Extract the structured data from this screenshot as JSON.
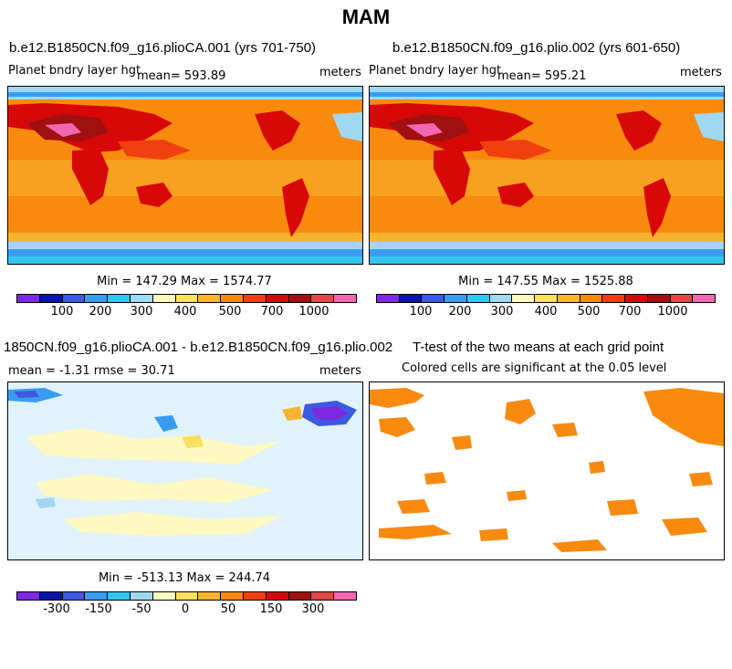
{
  "title": "MAM",
  "panels": [
    {
      "title": "b.e12.B1850CN.f09_g16.plioCA.001 (yrs 701-750)",
      "variable": "Planet bndry layer hgt",
      "mean_label": "mean= 593.89",
      "units": "meters",
      "minmax": "Min = 147.29 Max = 1574.77"
    },
    {
      "title": "b.e12.B1850CN.f09_g16.plio.002 (yrs 601-650)",
      "variable": "Planet bndry layer hgt",
      "mean_label": "mean= 595.21",
      "units": "meters",
      "minmax": "Min = 147.55 Max = 1525.88"
    },
    {
      "title": "1850CN.f09_g16.plioCA.001 - b.e12.B1850CN.f09_g16.plio.002",
      "stats": "mean =   -1.31     rmse =   30.71",
      "units": "meters",
      "minmax": "Min = -513.13 Max = 244.74"
    },
    {
      "title": "T-test of the two means at each grid point",
      "note": "Colored cells are significant at the 0.05 level"
    }
  ],
  "colorbar_colors": [
    "#7b2ae0",
    "#0a14a8",
    "#3c5ae0",
    "#3a9cf0",
    "#34c4f0",
    "#a0d8f4",
    "#fff8c0",
    "#f8e060",
    "#f8b430",
    "#f88a10",
    "#f04010",
    "#d80808",
    "#a01010",
    "#e04848",
    "#f068b0"
  ],
  "chart_data": [
    {
      "type": "heatmap",
      "title": "b.e12.B1850CN.f09_g16.plioCA.001 (yrs 701-750)",
      "variable": "Planet bndry layer hgt",
      "units": "meters",
      "mean": 593.89,
      "min": 147.29,
      "max": 1574.77,
      "colorbar_ticks": [
        "100",
        "200",
        "300",
        "400",
        "500",
        "700",
        "1000"
      ]
    },
    {
      "type": "heatmap",
      "title": "b.e12.B1850CN.f09_g16.plio.002 (yrs 601-650)",
      "variable": "Planet bndry layer hgt",
      "units": "meters",
      "mean": 595.21,
      "min": 147.55,
      "max": 1525.88,
      "colorbar_ticks": [
        "100",
        "200",
        "300",
        "400",
        "500",
        "700",
        "1000"
      ]
    },
    {
      "type": "heatmap",
      "title": "1850CN.f09_g16.plioCA.001 - b.e12.B1850CN.f09_g16.plio.002",
      "units": "meters",
      "mean": -1.31,
      "rmse": 30.71,
      "min": -513.13,
      "max": 244.74,
      "colorbar_ticks": [
        "-300",
        "-150",
        "-50",
        "0",
        "50",
        "150",
        "300"
      ]
    },
    {
      "type": "heatmap",
      "title": "T-test of the two means at each grid point",
      "note": "Colored cells are significant at the 0.05 level"
    }
  ]
}
